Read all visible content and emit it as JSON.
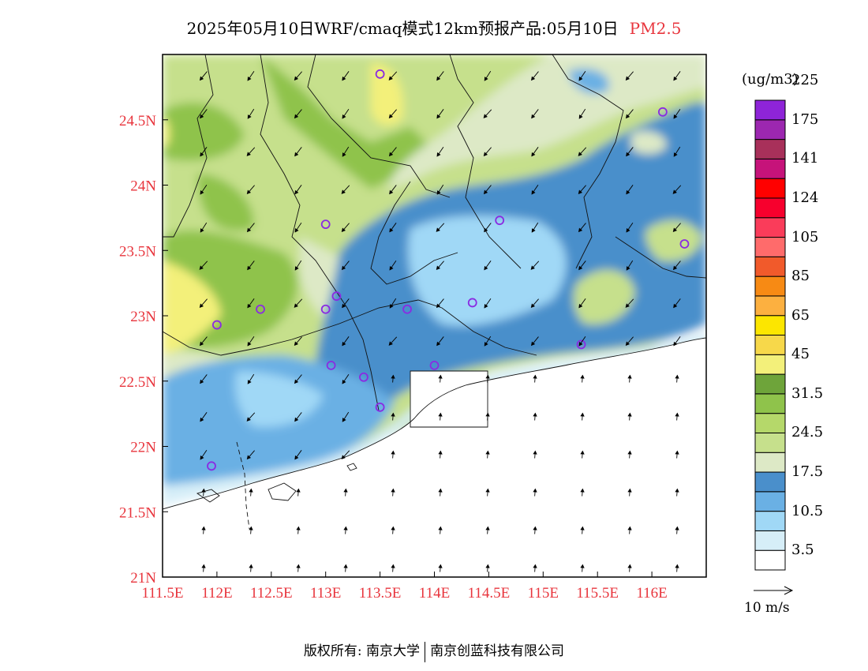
{
  "title": {
    "text": "2025年05月10日WRF/cmaq模式12km预报产品:05月10日",
    "pollutant": "PM2.5",
    "pollutant_color": "#e8353d"
  },
  "map": {
    "lon_range": [
      111.5,
      116.5
    ],
    "lat_range": [
      21.0,
      25.0
    ],
    "x_ticks": [
      "111.5E",
      "112E",
      "112.5E",
      "113E",
      "113.5E",
      "114E",
      "114.5E",
      "115E",
      "115.5E",
      "116E"
    ],
    "y_ticks": [
      "21N",
      "21.5N",
      "22N",
      "22.5N",
      "23N",
      "23.5N",
      "24N",
      "24.5N"
    ],
    "tick_color": "#e8353d",
    "station_marker_color": "#8a2be2"
  },
  "colorbar": {
    "unit": "(ug/m3)",
    "colors": [
      "#ffffff",
      "#d6eef8",
      "#a0d8f6",
      "#6ab0e4",
      "#4a8fcb",
      "#dde9c6",
      "#c6e08c",
      "#b5d86a",
      "#8fc34b",
      "#6ea43a",
      "#f3f07a",
      "#f7d84a",
      "#fce600",
      "#fcb040",
      "#f78a14",
      "#f15a2b",
      "#ff6b6b",
      "#fa3c5a",
      "#f7002d",
      "#ff0000",
      "#c6137a",
      "#a8305a",
      "#9c27b0",
      "#8e24d8"
    ],
    "labels": [
      "3.5",
      "10.5",
      "17.5",
      "24.5",
      "31.5",
      "45",
      "65",
      "85",
      "105",
      "124",
      "141",
      "175",
      "225"
    ]
  },
  "wind": {
    "label": "10 m/s"
  },
  "footer": {
    "copyright": "版权所有: 南京大学",
    "company": "南京创蓝科技有限公司"
  }
}
